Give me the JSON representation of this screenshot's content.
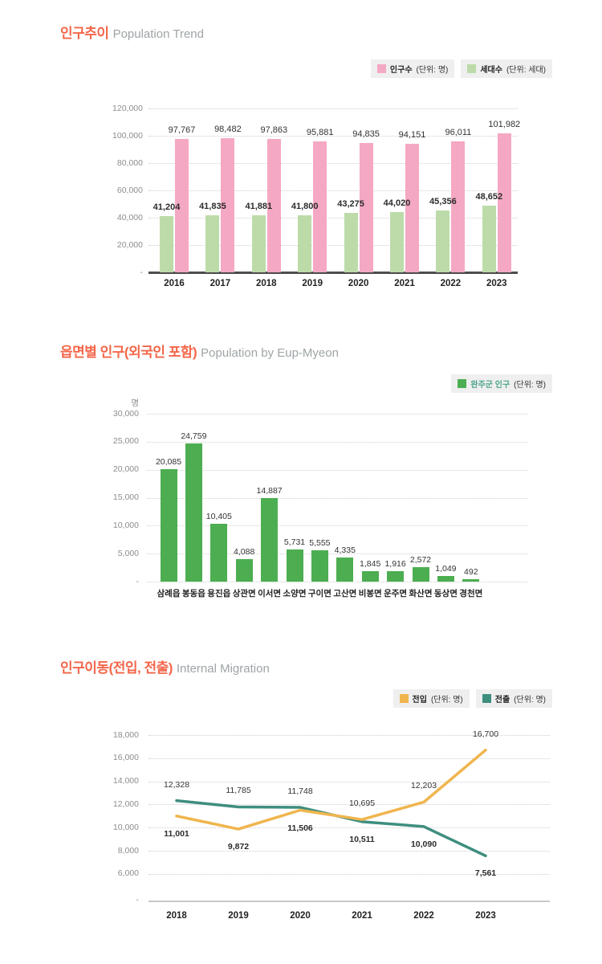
{
  "theme": {
    "title_color": "#F4664A",
    "subtitle_color": "#9EA4A6",
    "legend_bg": "#EFEFEF",
    "grid_color": "#CFCFCF",
    "tick_color": "#8D8D8D"
  },
  "chart_data": [
    {
      "type": "bar",
      "title": "인구추이",
      "subtitle": "Population Trend",
      "legend": [
        {
          "label": "인구수",
          "unit": "(단위: 명)",
          "color": "#F5A8C3"
        },
        {
          "label": "세대수",
          "unit": "(단위: 세대)",
          "color": "#BCDBA9"
        }
      ],
      "categories": [
        "2016",
        "2017",
        "2018",
        "2019",
        "2020",
        "2021",
        "2022",
        "2023"
      ],
      "series": [
        {
          "name": "인구수",
          "color": "#F5A8C3",
          "label_bold": false,
          "values": [
            97767,
            98482,
            97863,
            95881,
            94835,
            94151,
            96011,
            101982
          ]
        },
        {
          "name": "세대수",
          "color": "#BCDBA9",
          "label_bold": true,
          "values": [
            41204,
            41835,
            41881,
            41800,
            43275,
            44020,
            45356,
            48652
          ]
        }
      ],
      "ylim": [
        0,
        120000
      ],
      "yticks": [
        "120,000",
        "100,000",
        "80,000",
        "60,000",
        "40,000",
        "20,000",
        "-"
      ],
      "grid": "dotted-horizontal",
      "legend_position": "top-right"
    },
    {
      "type": "bar",
      "title": "읍면별 인구(외국인 포함)",
      "subtitle": "Population by Eup-Myeon",
      "unit_label": "명",
      "legend": [
        {
          "label": "완주군 인구",
          "unit": "(단위: 명)",
          "color": "#4CAE50",
          "label_color": "#4BA38B"
        }
      ],
      "categories": [
        "삼례읍",
        "봉동읍",
        "용진읍",
        "상관면",
        "이서면",
        "소양면",
        "구이면",
        "고산면",
        "비봉면",
        "운주면",
        "화산면",
        "동상면",
        "경천면"
      ],
      "values": [
        20085,
        24759,
        10405,
        4088,
        14887,
        5731,
        5555,
        4335,
        1845,
        1916,
        2572,
        1049,
        492
      ],
      "color": "#4CAE50",
      "ylim": [
        0,
        30000
      ],
      "yticks": [
        "30,000",
        "25,000",
        "20,000",
        "15,000",
        "10,000",
        "5,000",
        "-"
      ],
      "grid": "dotted-horizontal",
      "legend_position": "top-right"
    },
    {
      "type": "line",
      "title": "인구이동(전입, 전출)",
      "subtitle": "Internal Migration",
      "legend": [
        {
          "label": "전입",
          "unit": "(단위: 명)",
          "color": "#F0B54E"
        },
        {
          "label": "전출",
          "unit": "(단위: 명)",
          "color": "#3E8E7E"
        }
      ],
      "categories": [
        "2018",
        "2019",
        "2020",
        "2021",
        "2022",
        "2023"
      ],
      "series": [
        {
          "name": "전입",
          "color": "#F0B54E",
          "values": [
            11001,
            9872,
            11506,
            10695,
            12203,
            16700
          ]
        },
        {
          "name": "전출",
          "color": "#3E8E7E",
          "values": [
            12328,
            11785,
            11748,
            10511,
            10090,
            7561
          ]
        }
      ],
      "ylim_visible": [
        6000,
        18000
      ],
      "yticks": [
        "18,000",
        "16,000",
        "14,000",
        "12,000",
        "10,000",
        "8,000",
        "6,000",
        "-"
      ],
      "grid": "dotted-horizontal",
      "legend_position": "top-right"
    }
  ]
}
